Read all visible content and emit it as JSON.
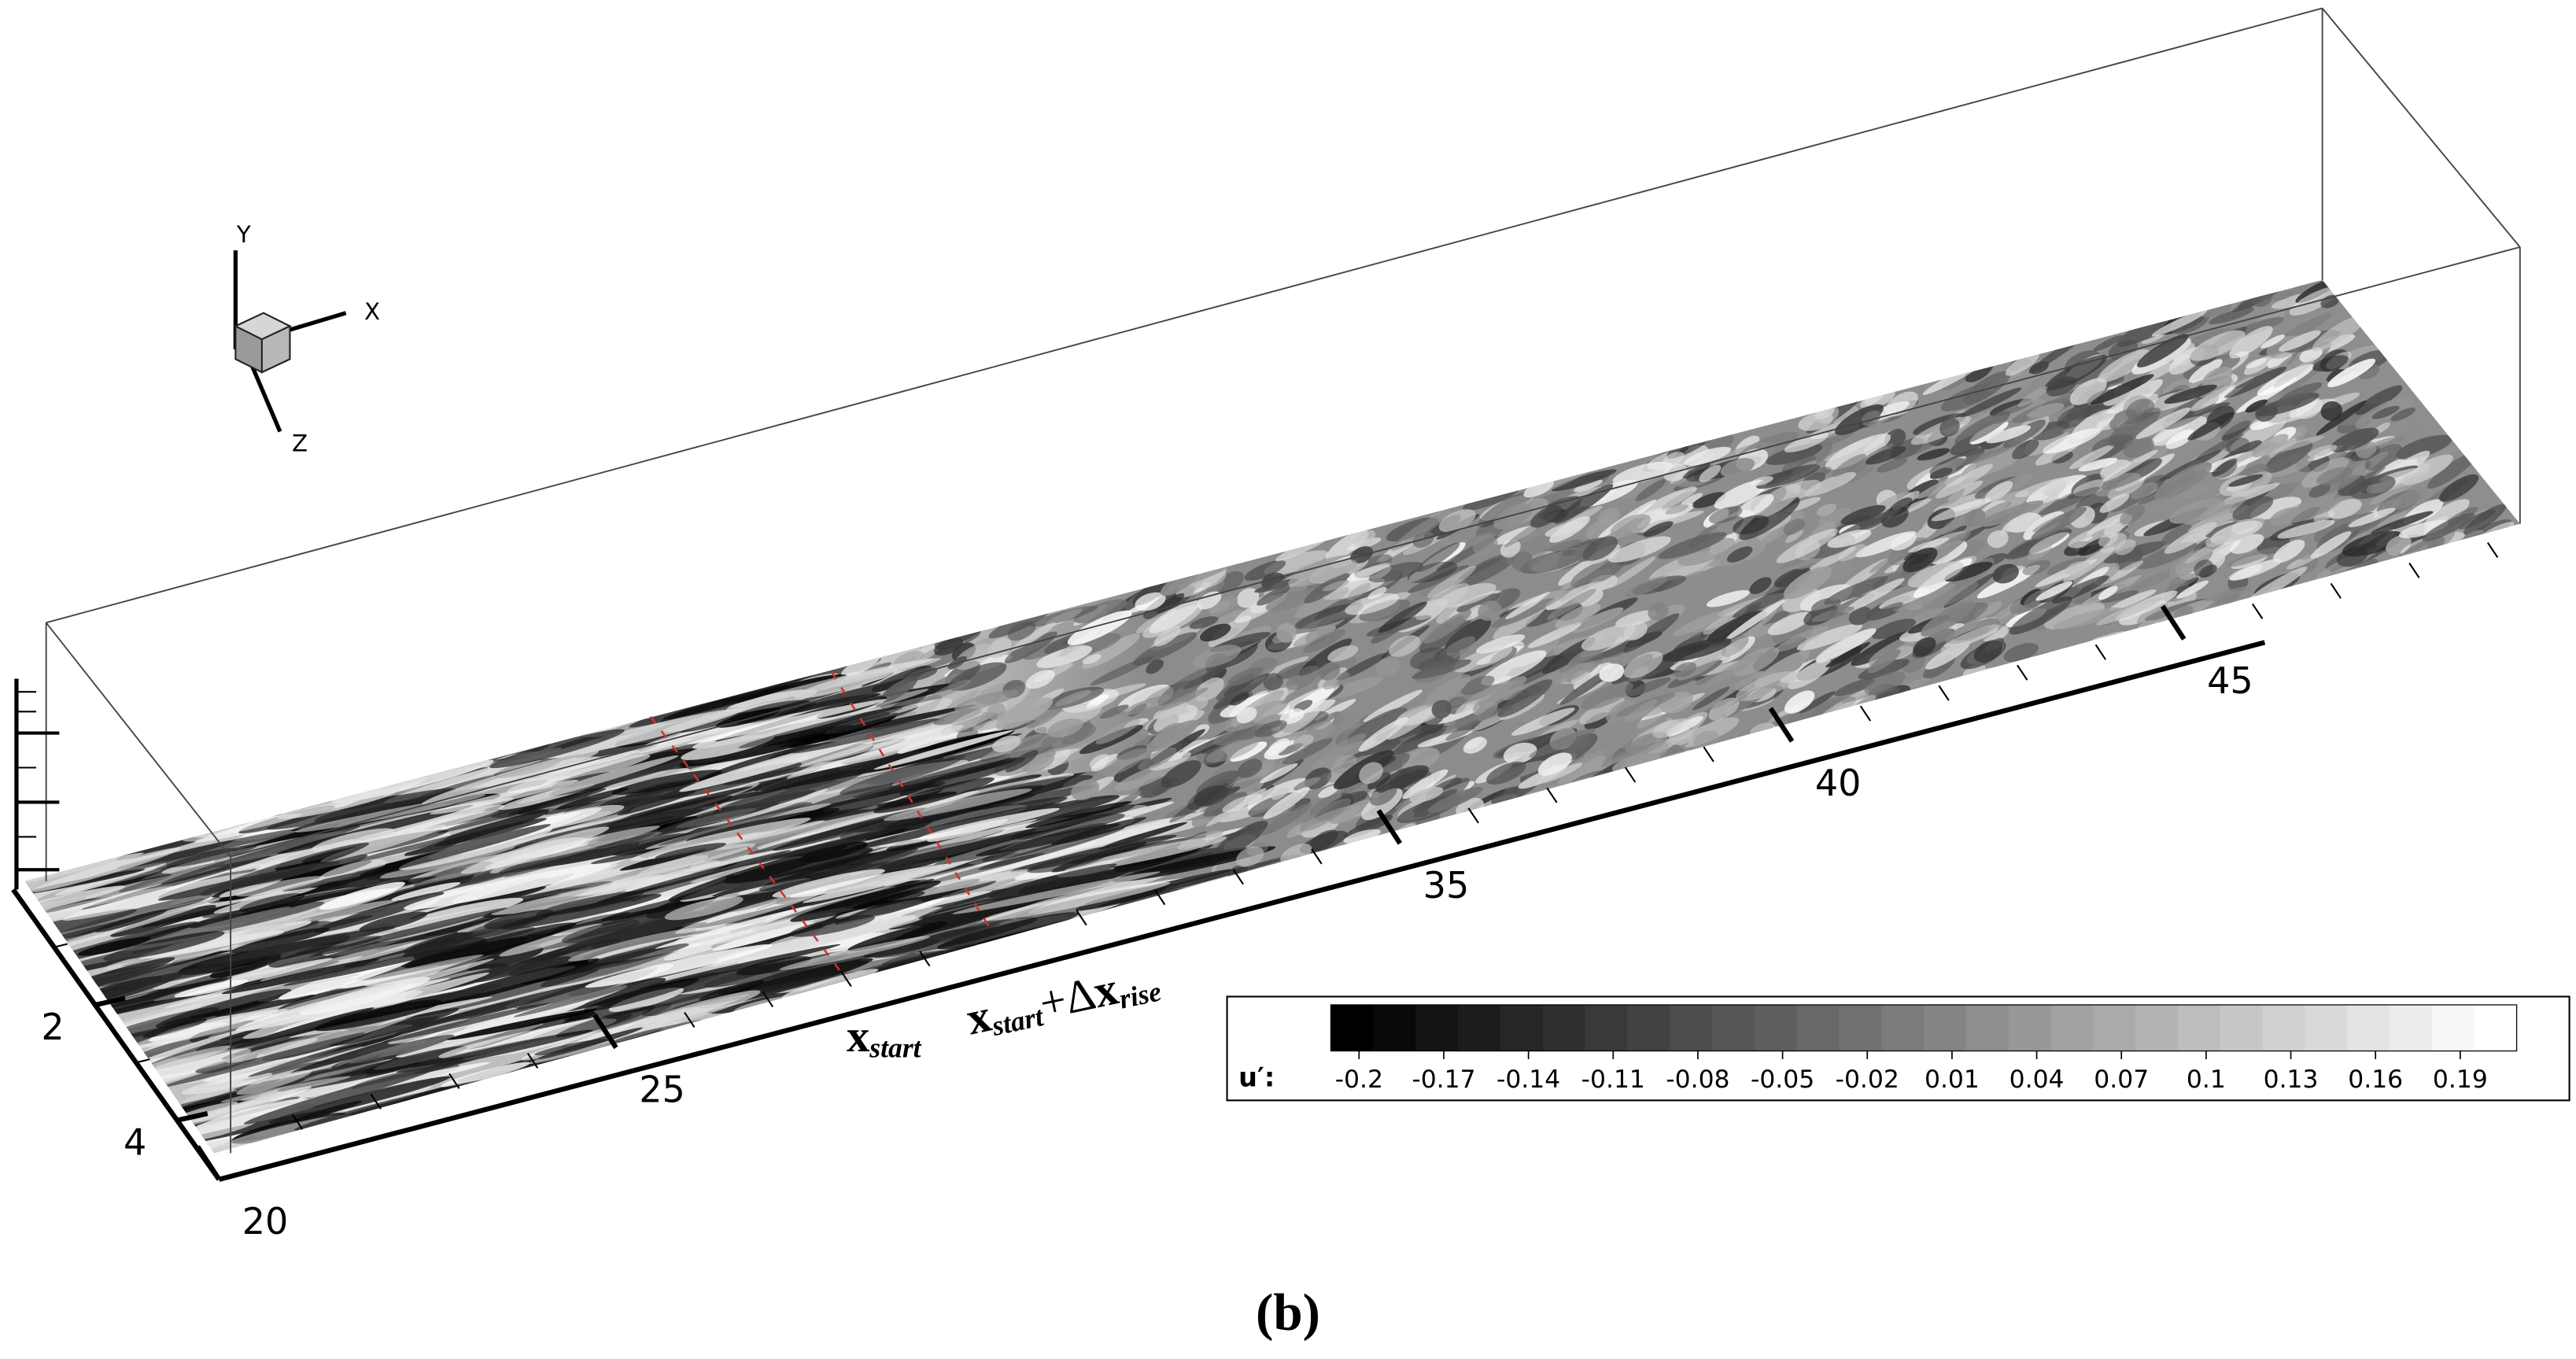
{
  "axes_triad": {
    "y": "Y",
    "x": "X",
    "z": "Z"
  },
  "x_axis": {
    "ticks": [
      20,
      25,
      35,
      40,
      45
    ]
  },
  "z_axis": {
    "ticks": [
      2,
      4
    ]
  },
  "annotations": {
    "x_start": {
      "main": "x",
      "sub": "start"
    },
    "x_rise": {
      "main1": "x",
      "sub1": "start",
      "plus": "+Δ",
      "main2": "x",
      "sub2": "rise"
    }
  },
  "colorbar": {
    "label": "u′:",
    "range": [
      -0.21,
      0.21
    ],
    "ticks": [
      -0.2,
      -0.17,
      -0.14,
      -0.11,
      -0.08,
      -0.05,
      -0.02,
      0.01,
      0.04,
      0.07,
      0.1,
      0.13,
      0.16,
      0.19
    ]
  },
  "caption": "(b)"
}
